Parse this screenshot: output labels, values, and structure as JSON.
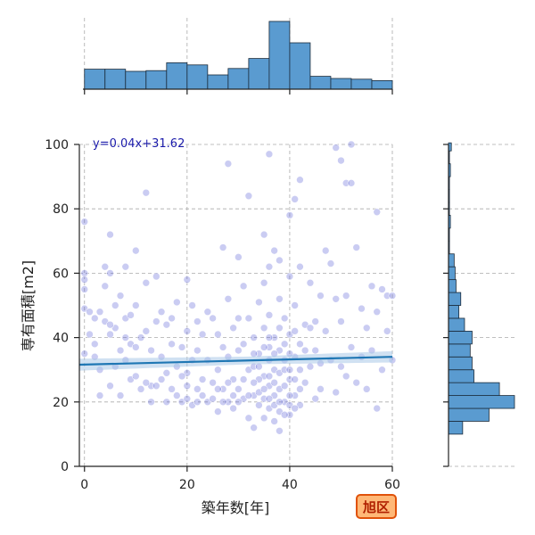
{
  "chart_data": {
    "type": "scatter",
    "title": "",
    "xlabel": "築年数[年]",
    "ylabel": "専有面積[m2]",
    "xlim": [
      -1,
      60
    ],
    "ylim": [
      0,
      100
    ],
    "xticks": [
      0,
      20,
      40,
      60
    ],
    "yticks": [
      0,
      20,
      40,
      60,
      80,
      100
    ],
    "grid": true,
    "regression": {
      "slope": 0.04,
      "intercept": 31.62,
      "label": "y=0.04x+31.62"
    },
    "badge": "旭区",
    "colors": {
      "points": "#5b5fd6",
      "regression_line": "#1f77b4",
      "confidence_band": "#aac8e8",
      "histogram_fill": "#5a9bd0",
      "histogram_edge": "#1a2a3a",
      "badge_fill": "#ffb877",
      "badge_border": "#e0520a"
    },
    "x_histogram": {
      "bin_edges": [
        0,
        4,
        8,
        12,
        16,
        20,
        24,
        28,
        32,
        36,
        40,
        44,
        48,
        52,
        56,
        60
      ],
      "counts": [
        28,
        28,
        25,
        26,
        37,
        34,
        20,
        29,
        43,
        95,
        65,
        18,
        15,
        14,
        12,
        8
      ]
    },
    "y_histogram": {
      "bin_edges": [
        10,
        14,
        18,
        22,
        26,
        30,
        34,
        38,
        42,
        46,
        50,
        54,
        58,
        62,
        66,
        70,
        74,
        78,
        82,
        86,
        90,
        94,
        98,
        102
      ],
      "counts": [
        15,
        43,
        70,
        54,
        27,
        25,
        23,
        25,
        17,
        11,
        13,
        8,
        7,
        6,
        1,
        1,
        2,
        1,
        1,
        1,
        2,
        1,
        3
      ]
    },
    "points": [
      [
        0,
        76
      ],
      [
        0,
        60
      ],
      [
        0,
        55
      ],
      [
        0,
        49
      ],
      [
        0,
        58
      ],
      [
        0,
        35
      ],
      [
        1,
        48
      ],
      [
        1,
        41
      ],
      [
        2,
        38
      ],
      [
        2,
        34
      ],
      [
        3,
        30
      ],
      [
        3,
        22
      ],
      [
        4,
        62
      ],
      [
        4,
        56
      ],
      [
        4,
        45
      ],
      [
        5,
        72
      ],
      [
        5,
        60
      ],
      [
        5,
        41
      ],
      [
        5,
        25
      ],
      [
        6,
        31
      ],
      [
        6,
        43
      ],
      [
        7,
        53
      ],
      [
        7,
        36
      ],
      [
        7,
        22
      ],
      [
        8,
        62
      ],
      [
        8,
        46
      ],
      [
        8,
        33
      ],
      [
        9,
        38
      ],
      [
        9,
        27
      ],
      [
        10,
        67
      ],
      [
        10,
        50
      ],
      [
        10,
        37
      ],
      [
        11,
        24
      ],
      [
        12,
        85
      ],
      [
        12,
        57
      ],
      [
        12,
        42
      ],
      [
        13,
        36
      ],
      [
        13,
        25
      ],
      [
        13,
        20
      ],
      [
        14,
        59
      ],
      [
        14,
        45
      ],
      [
        15,
        34
      ],
      [
        15,
        27
      ],
      [
        16,
        44
      ],
      [
        16,
        20
      ],
      [
        17,
        38
      ],
      [
        17,
        24
      ],
      [
        18,
        31
      ],
      [
        18,
        51
      ],
      [
        19,
        20
      ],
      [
        19,
        37
      ],
      [
        20,
        58
      ],
      [
        20,
        42
      ],
      [
        20,
        29
      ],
      [
        20,
        21
      ],
      [
        21,
        33
      ],
      [
        21,
        19
      ],
      [
        22,
        20
      ],
      [
        22,
        36
      ],
      [
        23,
        41
      ],
      [
        23,
        27
      ],
      [
        24,
        20
      ],
      [
        24,
        33
      ],
      [
        25,
        46
      ],
      [
        25,
        21
      ],
      [
        26,
        30
      ],
      [
        26,
        17
      ],
      [
        27,
        68
      ],
      [
        27,
        37
      ],
      [
        27,
        24
      ],
      [
        28,
        94
      ],
      [
        28,
        52
      ],
      [
        28,
        20
      ],
      [
        29,
        43
      ],
      [
        29,
        18
      ],
      [
        30,
        65
      ],
      [
        30,
        36
      ],
      [
        30,
        24
      ],
      [
        31,
        21
      ],
      [
        31,
        56
      ],
      [
        32,
        84
      ],
      [
        32,
        46
      ],
      [
        32,
        30
      ],
      [
        32,
        15
      ],
      [
        33,
        40
      ],
      [
        33,
        22
      ],
      [
        33,
        12
      ],
      [
        34,
        51
      ],
      [
        34,
        35
      ],
      [
        34,
        19
      ],
      [
        35,
        72
      ],
      [
        35,
        57
      ],
      [
        35,
        43
      ],
      [
        35,
        28
      ],
      [
        35,
        15
      ],
      [
        36,
        97
      ],
      [
        36,
        62
      ],
      [
        36,
        47
      ],
      [
        36,
        37
      ],
      [
        36,
        25
      ],
      [
        36,
        18
      ],
      [
        37,
        67
      ],
      [
        37,
        40
      ],
      [
        37,
        30
      ],
      [
        37,
        22
      ],
      [
        37,
        14
      ],
      [
        38,
        64
      ],
      [
        38,
        52
      ],
      [
        38,
        36
      ],
      [
        38,
        24
      ],
      [
        38,
        17
      ],
      [
        38,
        11
      ],
      [
        39,
        46
      ],
      [
        39,
        33
      ],
      [
        39,
        20
      ],
      [
        40,
        78
      ],
      [
        40,
        59
      ],
      [
        40,
        41
      ],
      [
        40,
        27
      ],
      [
        40,
        16
      ],
      [
        41,
        83
      ],
      [
        41,
        50
      ],
      [
        41,
        34
      ],
      [
        41,
        22
      ],
      [
        42,
        89
      ],
      [
        42,
        62
      ],
      [
        42,
        38
      ],
      [
        42,
        19
      ],
      [
        43,
        44
      ],
      [
        43,
        26
      ],
      [
        44,
        57
      ],
      [
        44,
        31
      ],
      [
        45,
        36
      ],
      [
        45,
        21
      ],
      [
        46,
        53
      ],
      [
        46,
        24
      ],
      [
        47,
        67
      ],
      [
        47,
        42
      ],
      [
        48,
        63
      ],
      [
        48,
        33
      ],
      [
        49,
        99
      ],
      [
        49,
        52
      ],
      [
        49,
        23
      ],
      [
        50,
        95
      ],
      [
        50,
        45
      ],
      [
        50,
        31
      ],
      [
        51,
        88
      ],
      [
        51,
        53
      ],
      [
        51,
        28
      ],
      [
        52,
        100
      ],
      [
        52,
        88
      ],
      [
        52,
        37
      ],
      [
        53,
        68
      ],
      [
        53,
        26
      ],
      [
        54,
        49
      ],
      [
        54,
        34
      ],
      [
        55,
        43
      ],
      [
        55,
        24
      ],
      [
        56,
        56
      ],
      [
        56,
        36
      ],
      [
        57,
        79
      ],
      [
        57,
        48
      ],
      [
        57,
        18
      ],
      [
        58,
        55
      ],
      [
        58,
        30
      ],
      [
        59,
        53
      ],
      [
        59,
        42
      ],
      [
        60,
        53
      ],
      [
        60,
        33
      ],
      [
        2,
        46
      ],
      [
        6,
        50
      ],
      [
        9,
        47
      ],
      [
        11,
        40
      ],
      [
        15,
        48
      ],
      [
        17,
        46
      ],
      [
        19,
        28
      ],
      [
        21,
        50
      ],
      [
        22,
        45
      ],
      [
        24,
        48
      ],
      [
        26,
        41
      ],
      [
        28,
        34
      ],
      [
        29,
        27
      ],
      [
        30,
        46
      ],
      [
        31,
        38
      ],
      [
        33,
        31
      ],
      [
        34,
        27
      ],
      [
        35,
        37
      ],
      [
        36,
        33
      ],
      [
        37,
        35
      ],
      [
        38,
        43
      ],
      [
        39,
        38
      ],
      [
        39,
        25
      ],
      [
        40,
        35
      ],
      [
        41,
        42
      ],
      [
        42,
        30
      ],
      [
        43,
        36
      ],
      [
        44,
        43
      ],
      [
        45,
        45
      ],
      [
        46,
        32
      ],
      [
        3,
        48
      ],
      [
        5,
        44
      ],
      [
        8,
        40
      ],
      [
        10,
        28
      ],
      [
        12,
        26
      ],
      [
        14,
        25
      ],
      [
        16,
        29
      ],
      [
        18,
        22
      ],
      [
        20,
        25
      ],
      [
        22,
        24
      ],
      [
        23,
        22
      ],
      [
        25,
        26
      ],
      [
        26,
        24
      ],
      [
        27,
        20
      ],
      [
        28,
        26
      ],
      [
        29,
        22
      ],
      [
        30,
        20
      ],
      [
        31,
        27
      ],
      [
        32,
        22
      ],
      [
        33,
        26
      ],
      [
        34,
        23
      ],
      [
        35,
        21
      ],
      [
        36,
        21
      ],
      [
        37,
        19
      ],
      [
        38,
        20
      ],
      [
        39,
        16
      ],
      [
        40,
        22
      ],
      [
        40,
        19
      ],
      [
        41,
        18
      ],
      [
        42,
        24
      ],
      [
        35,
        24
      ],
      [
        36,
        28
      ],
      [
        37,
        26
      ],
      [
        38,
        29
      ],
      [
        34,
        31
      ],
      [
        39,
        30
      ],
      [
        40,
        30
      ],
      [
        33,
        35
      ],
      [
        41,
        27
      ],
      [
        36,
        40
      ]
    ]
  }
}
